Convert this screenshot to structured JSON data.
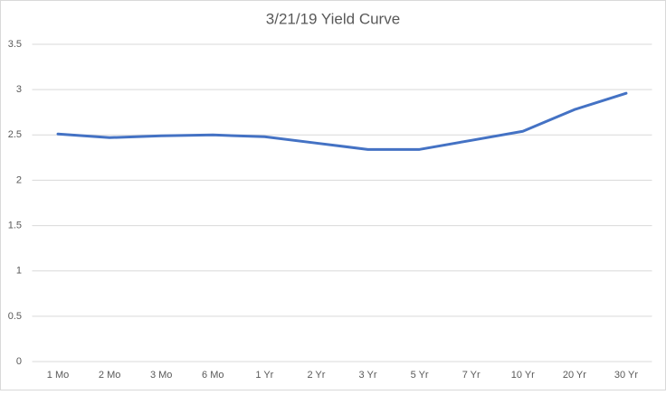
{
  "chart_data": {
    "type": "line",
    "title": "3/21/19 Yield Curve",
    "categories": [
      "1 Mo",
      "2 Mo",
      "3 Mo",
      "6 Mo",
      "1 Yr",
      "2 Yr",
      "3 Yr",
      "5 Yr",
      "7 Yr",
      "10 Yr",
      "20 Yr",
      "30 Yr"
    ],
    "values": [
      2.51,
      2.47,
      2.49,
      2.5,
      2.48,
      2.41,
      2.34,
      2.34,
      2.44,
      2.54,
      2.78,
      2.96
    ],
    "color": "#4472c4",
    "ylim": [
      0,
      3.5
    ],
    "yticks": [
      0,
      0.5,
      1,
      1.5,
      2,
      2.5,
      3,
      3.5
    ],
    "grid": true
  }
}
